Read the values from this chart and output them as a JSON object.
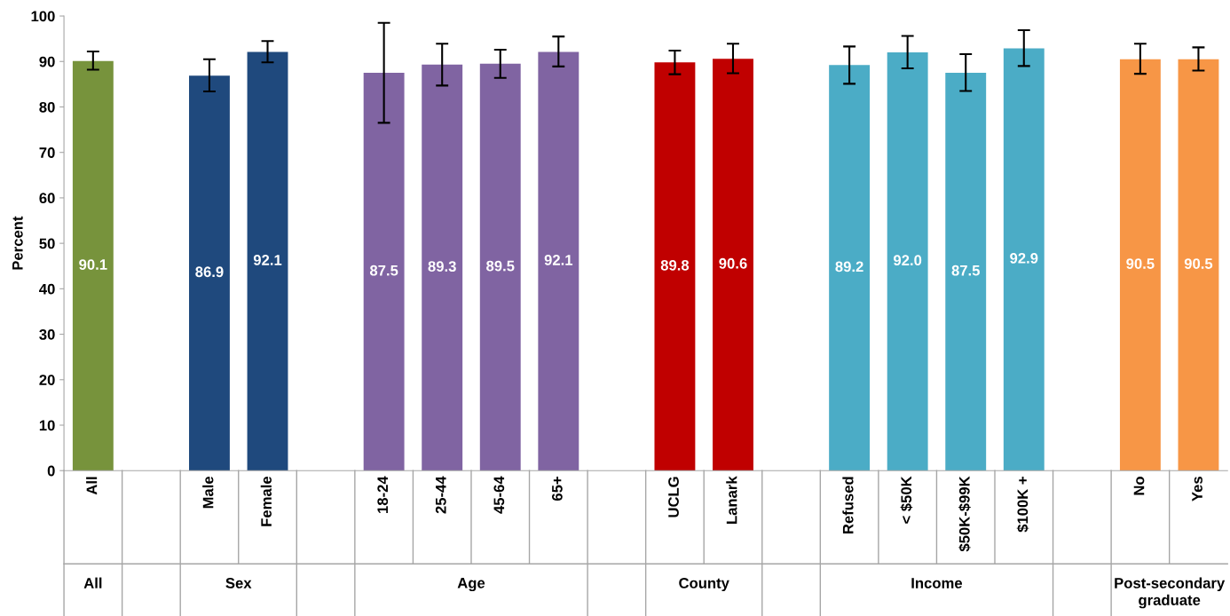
{
  "chart_data": {
    "type": "bar",
    "ylabel": "Percent",
    "categories": [
      "All",
      null,
      "Male",
      "Female",
      null,
      "18-24",
      "25-44",
      "45-64",
      "65+",
      null,
      "UCLG",
      "Lanark",
      null,
      "Refused",
      "< $50K",
      "$50K-$99K",
      "$100K +",
      null,
      "No",
      "Yes"
    ],
    "values": [
      90.1,
      null,
      86.9,
      92.1,
      null,
      87.5,
      89.3,
      89.5,
      92.1,
      null,
      89.8,
      90.6,
      null,
      89.2,
      92.0,
      87.5,
      92.9,
      null,
      90.5,
      90.5
    ],
    "colors": [
      "#77933c",
      null,
      "#1f497d",
      "#1f497d",
      null,
      "#8064a2",
      "#8064a2",
      "#8064a2",
      "#8064a2",
      null,
      "#c00000",
      "#c00000",
      null,
      "#4bacc6",
      "#4bacc6",
      "#4bacc6",
      "#4bacc6",
      null,
      "#f79646",
      "#f79646"
    ],
    "errors": [
      [
        88.2,
        92.2
      ],
      null,
      [
        83.4,
        90.5
      ],
      [
        89.8,
        94.5
      ],
      null,
      [
        76.5,
        98.5
      ],
      [
        84.7,
        93.9
      ],
      [
        86.4,
        92.6
      ],
      [
        88.9,
        95.5
      ],
      null,
      [
        87.2,
        92.4
      ],
      [
        87.4,
        93.9
      ],
      null,
      [
        85.1,
        93.3
      ],
      [
        88.5,
        95.6
      ],
      [
        83.5,
        91.6
      ],
      [
        89.0,
        96.9
      ],
      null,
      [
        87.3,
        93.9
      ],
      [
        88.0,
        93.1
      ]
    ],
    "value_labels": [
      "90.1",
      null,
      "86.9",
      "92.1",
      null,
      "87.5",
      "89.3",
      "89.5",
      "92.1",
      null,
      "89.8",
      "90.6",
      null,
      "89.2",
      "92.0",
      "87.5",
      "92.9",
      null,
      "90.5",
      "90.5"
    ],
    "annotations": [
      "All",
      "Sex",
      "Age",
      "County",
      "Income",
      "Post-secondary\ngraduate"
    ],
    "ylim": [
      0,
      100
    ],
    "yticks": [
      0,
      10,
      20,
      30,
      40,
      50,
      60,
      70,
      80,
      90,
      100
    ],
    "grid": false,
    "legend": false
  }
}
